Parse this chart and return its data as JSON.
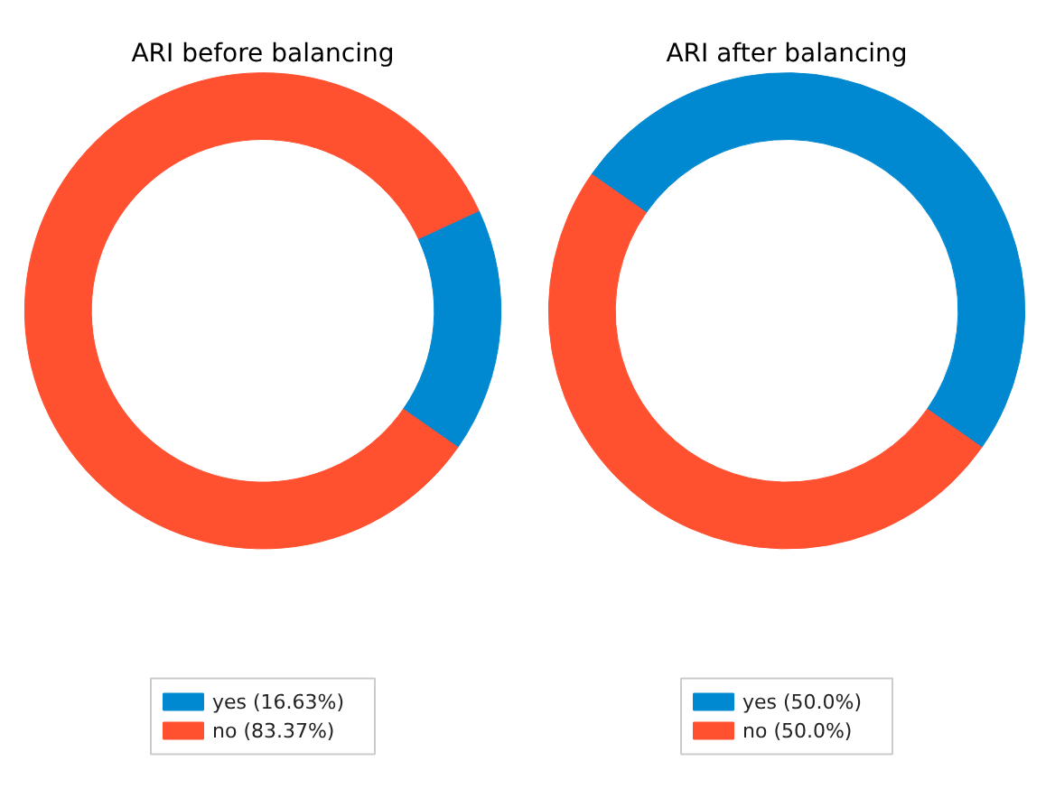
{
  "chart_data": [
    {
      "type": "donut",
      "title": "ARI before balancing",
      "categories": [
        "yes (16.63%)",
        "no (83.37%)"
      ],
      "values": [
        16.63,
        83.37
      ],
      "colors": [
        "#0088d1",
        "#ff5030"
      ],
      "legend": "bottom"
    },
    {
      "type": "donut",
      "title": "ARI after balancing",
      "categories": [
        "yes (50.0%)",
        "no (50.0%)"
      ],
      "values": [
        50.0,
        50.0
      ],
      "colors": [
        "#0088d1",
        "#ff5030"
      ],
      "legend": "bottom"
    }
  ]
}
